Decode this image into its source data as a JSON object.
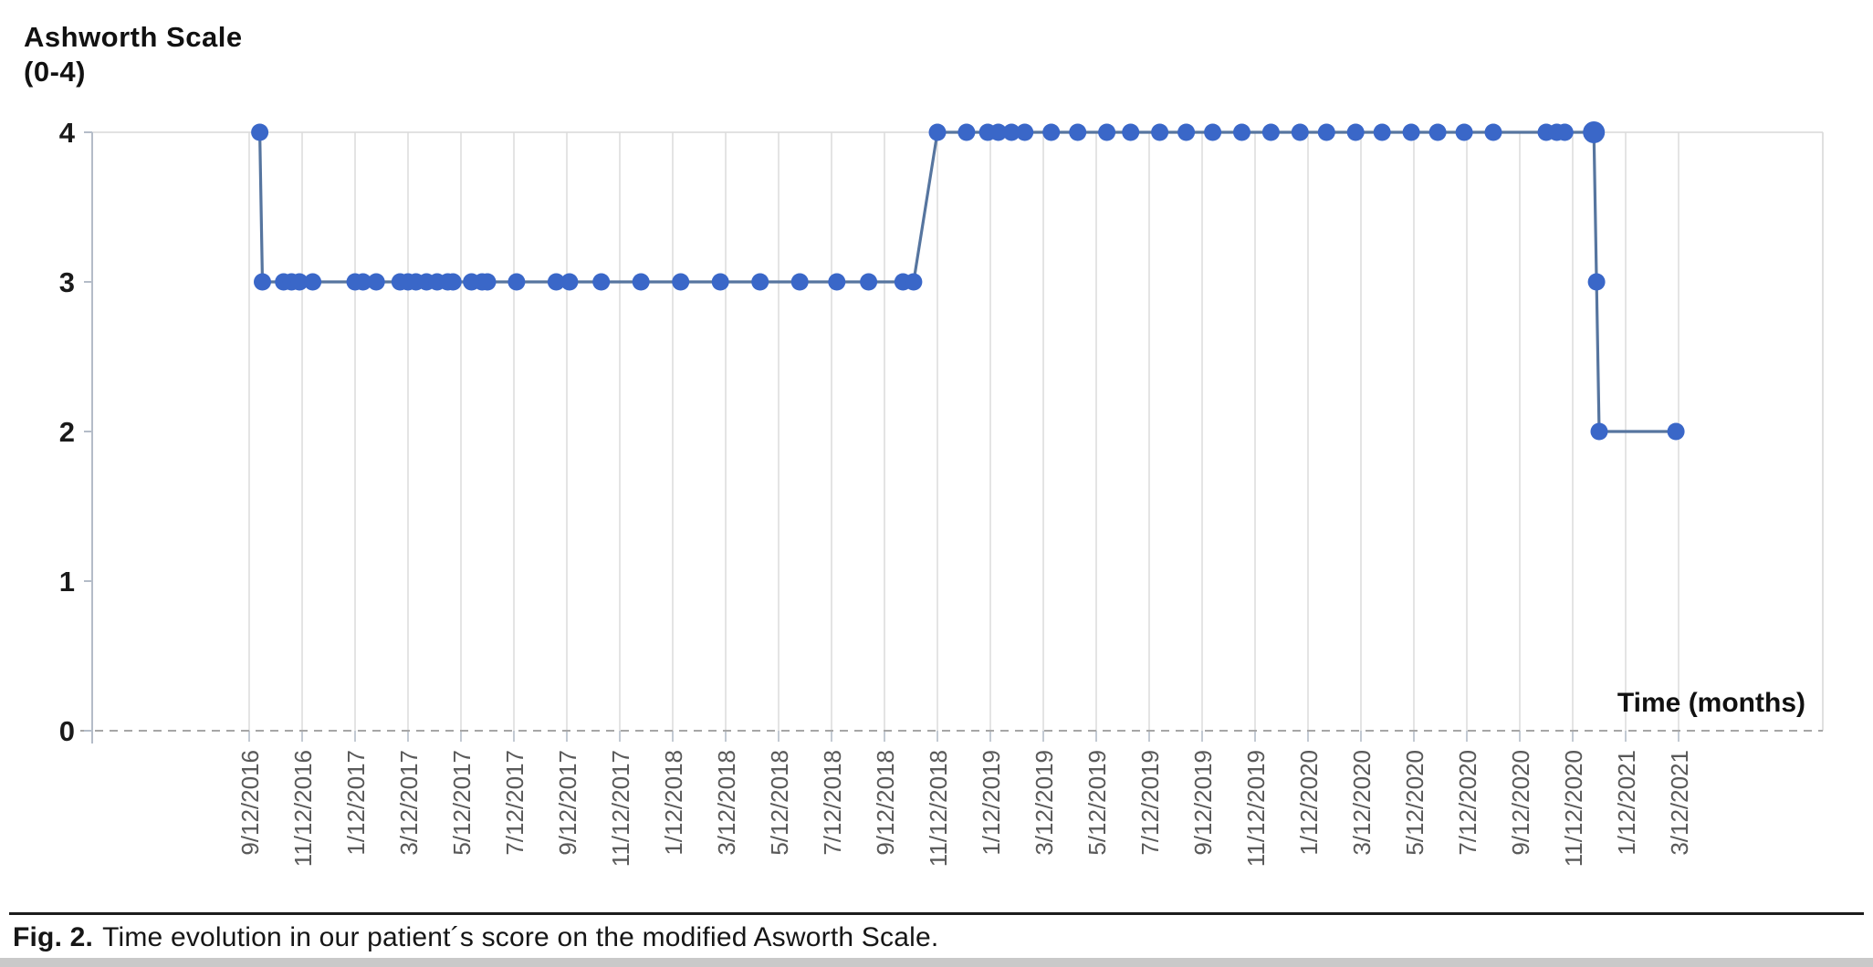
{
  "figure": {
    "y_axis_title_line1": "Ashworth Scale",
    "y_axis_title_line2": "(0-4)",
    "x_axis_title": "Time (months)",
    "caption_label": "Fig. 2.",
    "caption_text": "Time evolution in our patient´s score on the modified Asworth Scale."
  },
  "colors": {
    "marker": "#3a67c8",
    "line": "#56759f",
    "gridline": "#d9d9d9",
    "axis": "#b4bcc8",
    "zero_line": "#a6a6a6",
    "x_tick_label": "#595959",
    "y_tick_label": "#1a1a1a",
    "caption_rule": "#1c1c1c",
    "bottom_strip": "#c9c9c9"
  },
  "chart_data": {
    "type": "line",
    "title": "Ashworth Scale (0-4)",
    "xlabel": "Time (months)",
    "ylabel": "Ashworth Scale (0-4)",
    "ylim": [
      0,
      4
    ],
    "y_ticks": [
      4,
      3,
      2,
      1,
      0
    ],
    "grid": "vertical gridline at every x tick; solid top border at y=4; dashed baseline at y=0; no horizontal gridlines at 1-3",
    "legend": "none",
    "x_tick_unit": "months, one tick every 2 months",
    "x_tick_labels": [
      "9/12/2016",
      "11/12/2016",
      "1/12/2017",
      "3/12/2017",
      "5/12/2017",
      "7/12/2017",
      "9/12/2017",
      "11/12/2017",
      "1/12/2018",
      "3/12/2018",
      "5/12/2018",
      "7/12/2018",
      "9/12/2018",
      "11/12/2018",
      "1/12/2019",
      "3/12/2019",
      "5/12/2019",
      "7/12/2019",
      "9/12/2019",
      "11/12/2019",
      "1/12/2020",
      "3/12/2020",
      "5/12/2020",
      "7/12/2020",
      "9/12/2020",
      "11/12/2020",
      "1/12/2021",
      "3/12/2021"
    ],
    "series": [
      {
        "name": "Modified Ashworth Scale score",
        "x_meaning": "months after 9/12/2016",
        "points": [
          [
            0.4,
            4
          ],
          [
            0.5,
            3
          ],
          [
            1.3,
            3
          ],
          [
            1.6,
            3
          ],
          [
            1.9,
            3
          ],
          [
            2.4,
            3
          ],
          [
            4.0,
            3
          ],
          [
            4.3,
            3
          ],
          [
            4.8,
            3
          ],
          [
            5.7,
            3
          ],
          [
            6.0,
            3
          ],
          [
            6.3,
            3
          ],
          [
            6.7,
            3
          ],
          [
            7.1,
            3
          ],
          [
            7.5,
            3
          ],
          [
            7.7,
            3
          ],
          [
            8.4,
            3
          ],
          [
            8.8,
            3
          ],
          [
            9.0,
            3
          ],
          [
            10.1,
            3
          ],
          [
            11.6,
            3
          ],
          [
            12.1,
            3
          ],
          [
            13.3,
            3
          ],
          [
            14.8,
            3
          ],
          [
            16.3,
            3
          ],
          [
            17.8,
            3
          ],
          [
            19.3,
            3
          ],
          [
            20.8,
            3
          ],
          [
            22.2,
            3
          ],
          [
            23.4,
            3
          ],
          [
            24.7,
            3
          ],
          [
            25.1,
            3
          ],
          [
            26.0,
            4
          ],
          [
            27.1,
            4
          ],
          [
            27.9,
            4
          ],
          [
            28.3,
            4
          ],
          [
            28.8,
            4
          ],
          [
            29.3,
            4
          ],
          [
            30.3,
            4
          ],
          [
            31.3,
            4
          ],
          [
            32.4,
            4
          ],
          [
            33.3,
            4
          ],
          [
            34.4,
            4
          ],
          [
            35.4,
            4
          ],
          [
            36.4,
            4
          ],
          [
            37.5,
            4
          ],
          [
            38.6,
            4
          ],
          [
            39.7,
            4
          ],
          [
            40.7,
            4
          ],
          [
            41.8,
            4
          ],
          [
            42.8,
            4
          ],
          [
            43.9,
            4
          ],
          [
            44.9,
            4
          ],
          [
            45.9,
            4
          ],
          [
            47.0,
            4
          ],
          [
            49.0,
            4
          ],
          [
            49.4,
            4
          ],
          [
            49.7,
            4
          ],
          [
            50.8,
            4,
            12
          ],
          [
            50.9,
            3
          ],
          [
            51.0,
            2
          ],
          [
            53.9,
            2
          ]
        ]
      }
    ]
  }
}
